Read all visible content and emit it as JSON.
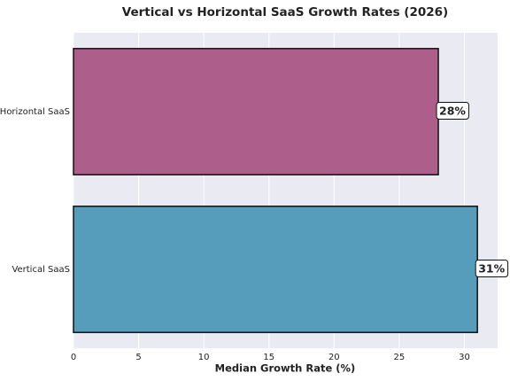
{
  "chart_data": {
    "type": "barh",
    "title": "Vertical vs Horizontal SaaS Growth Rates (2026)",
    "x_label": "Median Growth Rate (%)",
    "categories": [
      "Vertical SaaS",
      "Horizontal SaaS"
    ],
    "values": [
      31,
      28
    ],
    "value_labels": [
      "31%",
      "28%"
    ],
    "colors": [
      "#569dbb",
      "#ad5e8b"
    ],
    "xlim": [
      0,
      32.55
    ],
    "xticks": [
      0,
      5,
      10,
      15,
      20,
      25,
      30
    ],
    "grid": true
  }
}
